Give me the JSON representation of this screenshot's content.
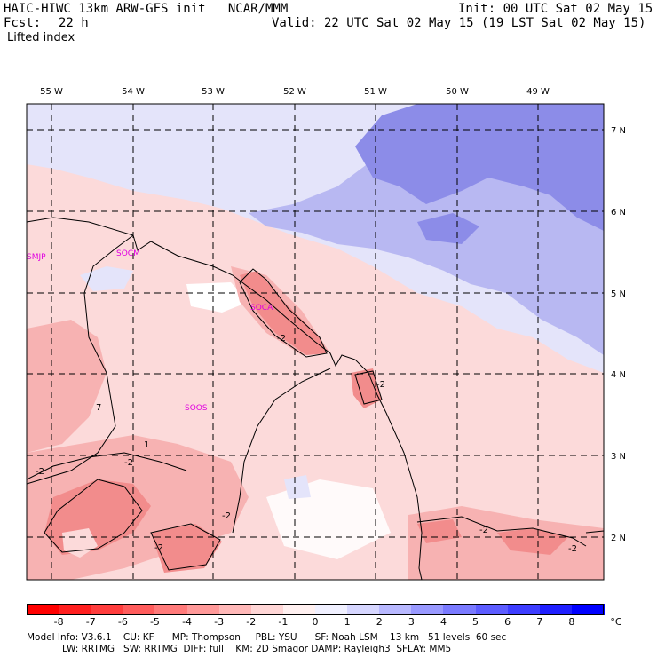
{
  "header": {
    "title": "HAIC-HIWC 13km ARW-GFS init   NCAR/MMM",
    "init": "Init: 00 UTC Sat 02 May 15",
    "fcst_label": "Fcst:",
    "fcst_value": "22 h",
    "valid": "Valid: 22 UTC Sat 02 May 15 (19 LST Sat 02 May 15)",
    "field": "Lifted index"
  },
  "map": {
    "lon_labels": [
      "55 W",
      "54 W",
      "53 W",
      "52 W",
      "51 W",
      "50 W",
      "49 W"
    ],
    "lat_labels": [
      "7 N",
      "6 N",
      "5 N",
      "4 N",
      "3 N",
      "2 N"
    ],
    "stations": [
      "SMJP",
      "SOCM",
      "SOCA",
      "SOOS"
    ],
    "contour_labels": [
      "-2",
      "-2",
      "-2",
      "-2",
      "-2",
      "-2",
      "-2",
      "-2",
      "1",
      "7"
    ],
    "colors": {
      "red_strong": "#f28c8c",
      "red_medium": "#f7b2b2",
      "red_light": "#fcdada",
      "neutral": "#ffffff",
      "blue_light": "#e4e4fa",
      "blue_medium": "#b8b8f2",
      "blue_strong": "#8c8ce8",
      "station_text": "#e000e0"
    }
  },
  "colorbar": {
    "ticks": [
      "-8",
      "-7",
      "-6",
      "-5",
      "-4",
      "-3",
      "-2",
      "-1",
      "0",
      "1",
      "2",
      "3",
      "4",
      "5",
      "6",
      "7",
      "8"
    ],
    "unit": "°C",
    "colors": [
      "#ff0000",
      "#ff1f1f",
      "#ff3d3d",
      "#ff5c5c",
      "#ff7a7a",
      "#ff9999",
      "#ffb8b8",
      "#ffd6d6",
      "#fff0f0",
      "#f0f0ff",
      "#d6d6ff",
      "#b8b8ff",
      "#9999ff",
      "#7a7aff",
      "#5c5cff",
      "#3d3dff",
      "#1f1fff",
      "#0000ff"
    ]
  },
  "footer": {
    "line1": "Model Info: V3.6.1    CU: KF      MP: Thompson     PBL: YSU      SF: Noah LSM    13 km   51 levels  60 sec",
    "line2": "            LW: RRTMG   SW: RRTMG  DIFF: full    KM: 2D Smagor DAMP: Rayleigh3  SFLAY: MM5"
  }
}
